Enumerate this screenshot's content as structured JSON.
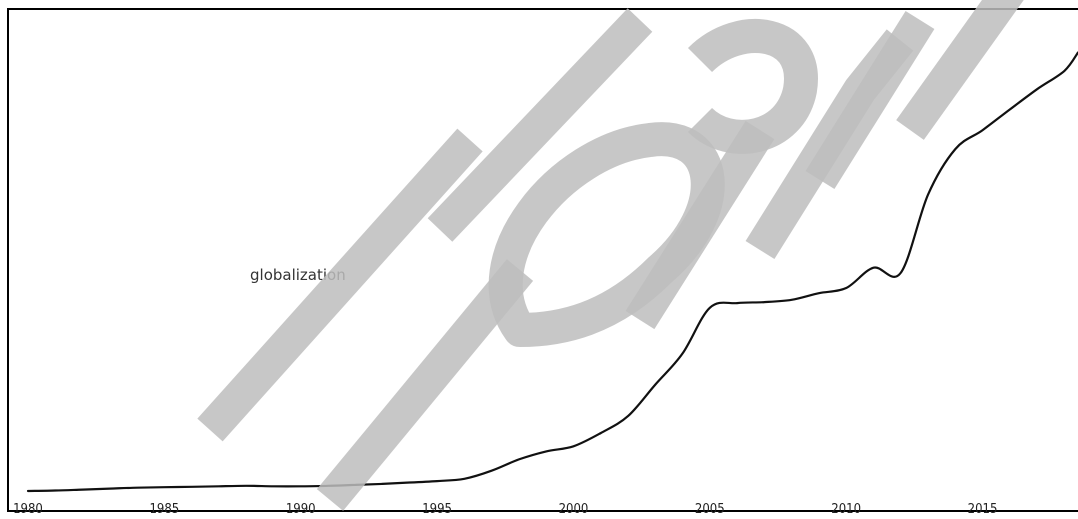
{
  "chart_data": {
    "type": "line",
    "title": "",
    "xlabel": "",
    "ylabel": "",
    "xlim": [
      1980,
      2018.5
    ],
    "ylim": [
      0,
      100
    ],
    "x_ticks": [
      1980,
      1985,
      1990,
      1995,
      2000,
      2005,
      2010,
      2015
    ],
    "tick_labels": [
      "1980",
      "1985",
      "1990",
      "1995",
      "2000",
      "2005",
      "2010",
      "2015"
    ],
    "grid": false,
    "series": [
      {
        "name": "globalization",
        "color": "#111111",
        "x": [
          1980,
          1981,
          1982,
          1983,
          1984,
          1985,
          1986,
          1987,
          1988,
          1989,
          1990,
          1991,
          1992,
          1993,
          1994,
          1995,
          1996,
          1997,
          1998,
          1999,
          2000,
          2001,
          2002,
          2003,
          2004,
          2005,
          2006,
          2007,
          2008,
          2009,
          2010,
          2011,
          2012,
          2013,
          2014,
          2015,
          2016,
          2017,
          2018,
          2018.5
        ],
        "y": [
          0,
          0.1,
          0.3,
          0.5,
          0.7,
          0.8,
          0.9,
          1.0,
          1.1,
          1.0,
          1.0,
          1.1,
          1.3,
          1.5,
          1.8,
          2.1,
          2.6,
          4.3,
          6.7,
          8.4,
          9.5,
          12.3,
          15.9,
          22.6,
          29.2,
          38.9,
          39.9,
          40.1,
          40.6,
          42.0,
          43.1,
          47.4,
          46.3,
          62.9,
          72.6,
          76.6,
          81.0,
          85.3,
          89.2,
          93.1
        ]
      }
    ]
  }
}
